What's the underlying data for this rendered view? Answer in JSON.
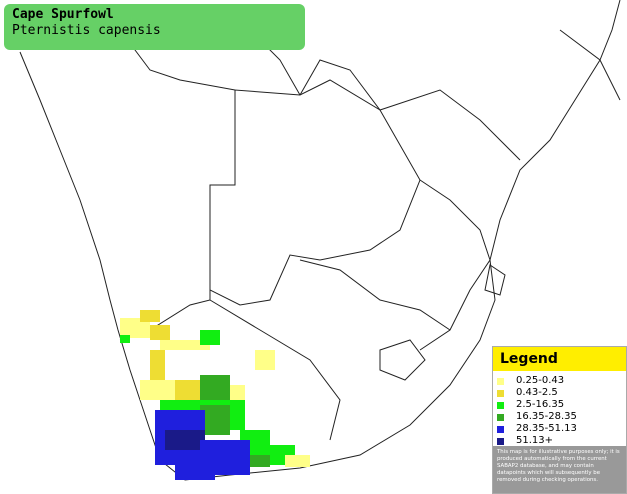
{
  "header": {
    "title": "Cape Spurfowl",
    "subtitle": "Pternistis capensis"
  },
  "legend": {
    "title": "Legend",
    "items": [
      {
        "label": "0.25-0.43",
        "color": "#ffff88"
      },
      {
        "label": "0.43-2.5",
        "color": "#eedd33"
      },
      {
        "label": "2.5-16.35",
        "color": "#11ee11"
      },
      {
        "label": "16.35-28.35",
        "color": "#33aa22"
      },
      {
        "label": "28.35-51.13",
        "color": "#1f1fdd"
      },
      {
        "label": "51.13+",
        "color": "#1a1a88"
      }
    ],
    "disclaimer": "This map is for illustrative purposes only; it is produced automatically from the current SABAP2 database, and may contain datapoints which will subsequently be removed during checking operations."
  }
}
